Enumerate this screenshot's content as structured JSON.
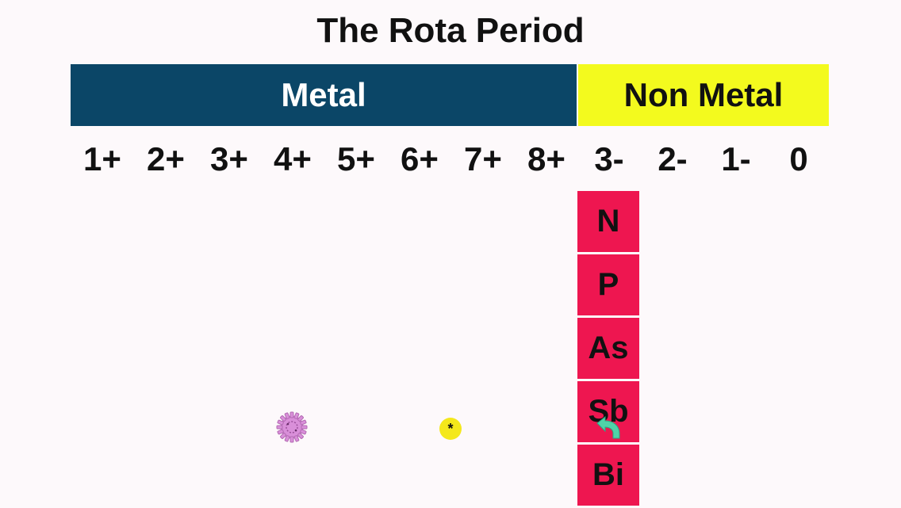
{
  "title": "The Rota Period",
  "bars": {
    "metal_label": "Metal",
    "nonmetal_label": "Non Metal"
  },
  "charges": [
    "1+",
    "2+",
    "3+",
    "4+",
    "5+",
    "6+",
    "7+",
    "8+",
    "3-",
    "2-",
    "1-",
    "0"
  ],
  "group_column": {
    "elements": [
      "N",
      "P",
      "As",
      "Sb",
      "Bi"
    ]
  },
  "icons": {
    "cog": "pink-cog-icon",
    "coin": "yellow-star-coin-icon",
    "arrow": "teal-curved-arrow-icon"
  },
  "coin_symbol": "*",
  "colors": {
    "metal_bar": "#0b4667",
    "nonmetal_bar": "#f3fa1e",
    "element_cell": "#ee1650",
    "background": "#fdf9fb"
  }
}
